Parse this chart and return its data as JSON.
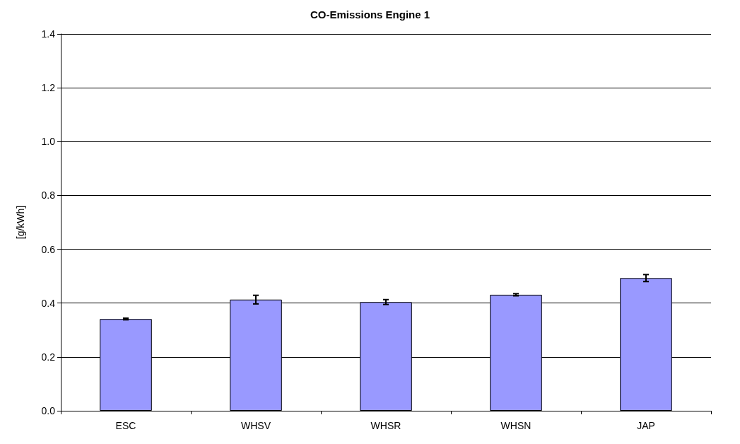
{
  "chart_data": {
    "type": "bar",
    "title": "CO-Emissions Engine 1",
    "ylabel": "[g/kWh]",
    "categories": [
      "ESC",
      "WHSV",
      "WHSR",
      "WHSN",
      "JAP"
    ],
    "values": [
      0.341,
      0.413,
      0.404,
      0.431,
      0.493
    ],
    "errors": [
      0.003,
      0.016,
      0.009,
      0.004,
      0.013
    ],
    "color": "#9999ff",
    "ylim": [
      0,
      1.4
    ],
    "yticks": [
      {
        "value": 0,
        "label": "0.0"
      },
      {
        "value": 0.2,
        "label": "0.2"
      },
      {
        "value": 0.4,
        "label": "0.4"
      },
      {
        "value": 0.6,
        "label": "0.6"
      },
      {
        "value": 0.8,
        "label": "0.8"
      },
      {
        "value": 1,
        "label": "1.0"
      },
      {
        "value": 1.2,
        "label": "1.2"
      },
      {
        "value": 1.4,
        "label": "1.4"
      }
    ],
    "grid": "y"
  }
}
